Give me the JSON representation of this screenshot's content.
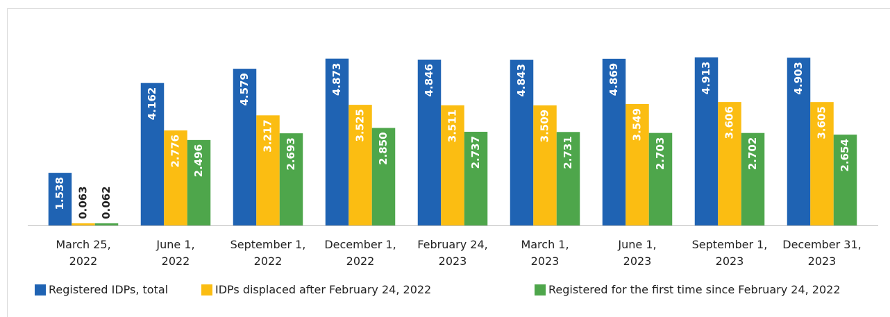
{
  "chart_data": {
    "type": "bar",
    "categories": [
      "March 25,\n2022",
      "June 1,\n2022",
      "September 1,\n2022",
      "December 1,\n2022",
      "February 24,\n2023",
      "March 1,\n2023",
      "June 1,\n2023",
      "September 1,\n2023",
      "December 31,\n2023"
    ],
    "series": [
      {
        "name": "Registered IDPs, total",
        "color": "#1f63b3",
        "values": [
          1.538,
          4.162,
          4.579,
          4.873,
          4.846,
          4.843,
          4.869,
          4.913,
          4.903
        ],
        "value_labels": [
          "1.538",
          "4.162",
          "4.579",
          "4.873",
          "4.846",
          "4.843",
          "4.869",
          "4.913",
          "4.903"
        ]
      },
      {
        "name": "IDPs displaced after February 24, 2022",
        "color": "#fbbd12",
        "values": [
          0.063,
          2.776,
          3.217,
          3.525,
          3.511,
          3.509,
          3.549,
          3.606,
          3.605
        ],
        "value_labels": [
          "0.063",
          "2.776",
          "3.217",
          "3.525",
          "3.511",
          "3.509",
          "3.549",
          "3.606",
          "3.605"
        ]
      },
      {
        "name": "Registered for the first time since February 24, 2022",
        "color": "#4ea64b",
        "values": [
          0.062,
          2.496,
          2.693,
          2.85,
          2.737,
          2.731,
          2.703,
          2.702,
          2.654
        ],
        "value_labels": [
          "0.062",
          "2.496",
          "2.693",
          "2.850",
          "2.737",
          "2.731",
          "2.703",
          "2.702",
          "2.654"
        ]
      }
    ],
    "ylim": [
      0,
      6
    ],
    "legend": "bottom"
  }
}
